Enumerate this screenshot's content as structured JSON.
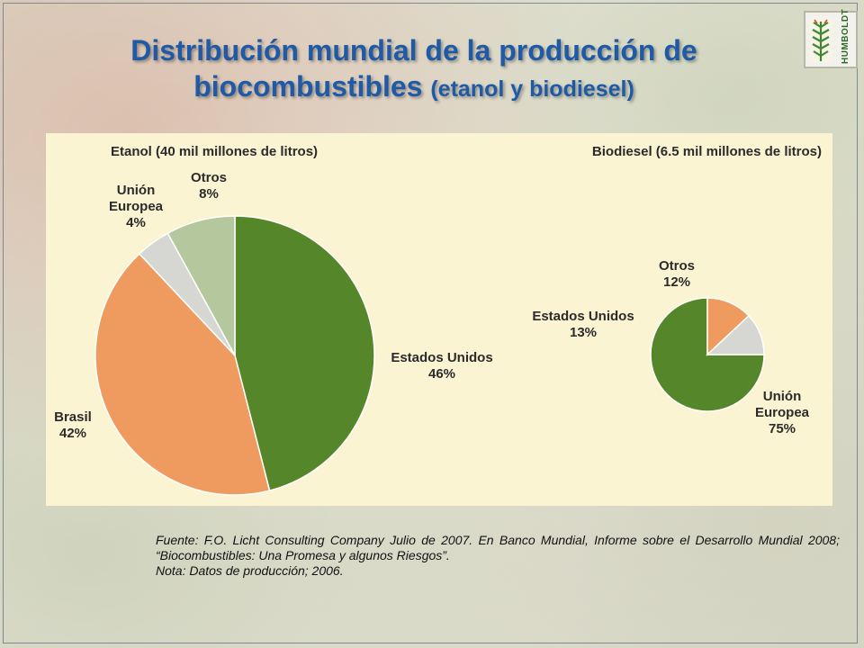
{
  "title": {
    "line1": "Distribución mundial de la producción de",
    "line2_main": "biocombustibles",
    "line2_small": "(etanol y biodiesel)"
  },
  "logo": {
    "text": "HUMBOLDT"
  },
  "chart_data": [
    {
      "type": "pie",
      "title": "Etanol (40 mil millones de litros)",
      "slices": [
        {
          "name": "Estados Unidos",
          "value": 46,
          "label": "46%",
          "color": "#56862a"
        },
        {
          "name": "Brasil",
          "value": 42,
          "label": "42%",
          "color": "#ef9a5f"
        },
        {
          "name": "Unión Europea",
          "value": 4,
          "label": "4%",
          "color": "#d6d6d2"
        },
        {
          "name": "Otros",
          "value": 8,
          "label": "8%",
          "color": "#b5c79c"
        }
      ]
    },
    {
      "type": "pie",
      "title": "Biodiesel (6.5 mil millones de litros)",
      "slices": [
        {
          "name": "Unión Europea",
          "value": 75,
          "label": "75%",
          "color": "#56862a"
        },
        {
          "name": "Estados Unidos",
          "value": 13,
          "label": "13%",
          "color": "#ef9a5f"
        },
        {
          "name": "Otros",
          "value": 12,
          "label": "12%",
          "color": "#d6d6d2"
        }
      ]
    }
  ],
  "source": {
    "line1": "Fuente: F.O. Licht Consulting Company Julio de 2007. En Banco Mundial, Informe sobre el Desarrollo Mundial 2008;  “Biocombustibles: Una Promesa y algunos Riesgos”.",
    "line2": "Nota: Datos de producción; 2006."
  }
}
